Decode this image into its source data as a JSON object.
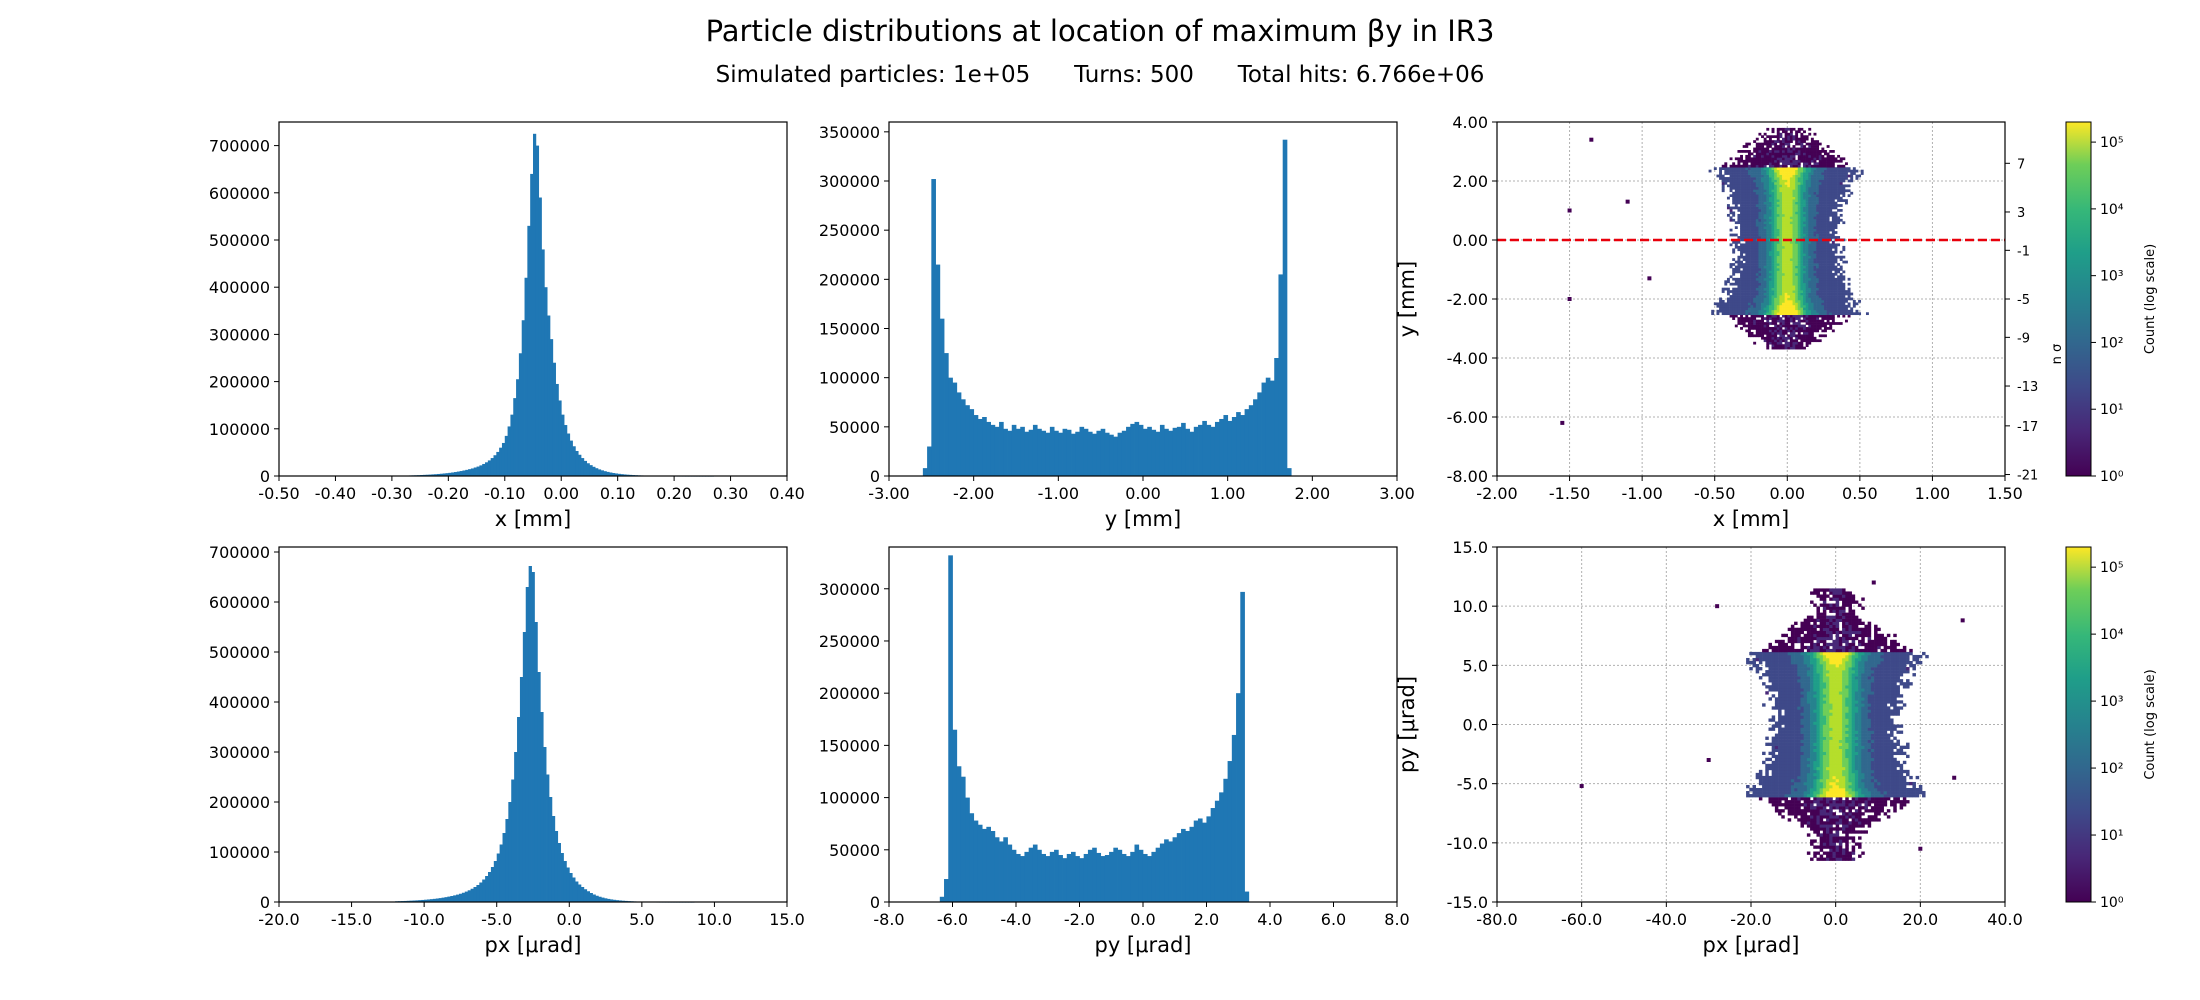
{
  "figure": {
    "title": "Particle distributions at location of maximum βy in IR3",
    "subtitle_particles": "Simulated particles: 1e+05",
    "subtitle_turns": "Turns: 500",
    "subtitle_hits": "Total hits: 6.766e+06"
  },
  "chart_data": [
    {
      "type": "bar",
      "id": "hist-x",
      "xlabel": "x [mm]",
      "ylabel": "",
      "xlim": [
        -0.5,
        0.4
      ],
      "ylim": [
        0,
        750000
      ],
      "xticks": [
        -0.5,
        -0.4,
        -0.3,
        -0.2,
        -0.1,
        0.0,
        0.1,
        0.2,
        0.3,
        0.4
      ],
      "xtick_labels": [
        "-0.50",
        "-0.40",
        "-0.30",
        "-0.20",
        "-0.10",
        "0.00",
        "0.10",
        "0.20",
        "0.30",
        "0.40"
      ],
      "yticks": [
        0,
        100000,
        200000,
        300000,
        400000,
        500000,
        600000,
        700000
      ],
      "ytick_labels": [
        "0",
        "100000",
        "200000",
        "300000",
        "400000",
        "500000",
        "600000",
        "700000"
      ],
      "bin_start": -0.3,
      "bin_width": 0.005,
      "values": [
        500,
        600,
        700,
        800,
        900,
        1000,
        1200,
        1400,
        1600,
        1800,
        2100,
        2400,
        2700,
        3000,
        3400,
        3800,
        4300,
        4800,
        5400,
        6000,
        6700,
        7500,
        8400,
        9400,
        10500,
        11700,
        13000,
        14500,
        16000,
        18000,
        20000,
        22500,
        25500,
        29000,
        33000,
        38000,
        44000,
        51000,
        60000,
        70000,
        85000,
        105000,
        130000,
        165000,
        205000,
        260000,
        330000,
        420000,
        530000,
        640000,
        725000,
        700000,
        590000,
        480000,
        400000,
        340000,
        290000,
        240000,
        195000,
        160000,
        130000,
        108000,
        90000,
        75000,
        63000,
        53000,
        45000,
        38000,
        32000,
        27000,
        23000,
        19500,
        16500,
        14000,
        12000,
        10200,
        8700,
        7400,
        6300,
        5400,
        4600,
        3900,
        3300,
        2800,
        2400,
        2000,
        1700,
        1400,
        1200,
        1000,
        850,
        700,
        600,
        500,
        420,
        350,
        300,
        250,
        210,
        180,
        150,
        120,
        100,
        80,
        60,
        50,
        40,
        30,
        20,
        10,
        5,
        3,
        2,
        1,
        0,
        0,
        0,
        0,
        0,
        0,
        0
      ]
    },
    {
      "type": "bar",
      "id": "hist-y",
      "xlabel": "y [mm]",
      "ylabel": "",
      "xlim": [
        -3.0,
        3.0
      ],
      "ylim": [
        0,
        360000
      ],
      "xticks": [
        -3.0,
        -2.0,
        -1.0,
        0.0,
        1.0,
        2.0,
        3.0
      ],
      "xtick_labels": [
        "-3.00",
        "-2.00",
        "-1.00",
        "0.00",
        "1.00",
        "2.00",
        "3.00"
      ],
      "yticks": [
        0,
        50000,
        100000,
        150000,
        200000,
        250000,
        300000,
        350000
      ],
      "ytick_labels": [
        "0",
        "50000",
        "100000",
        "150000",
        "200000",
        "250000",
        "300000",
        "350000"
      ],
      "bin_start": -2.6,
      "bin_width": 0.05,
      "values": [
        8000,
        30000,
        302000,
        215000,
        160000,
        125000,
        100000,
        95000,
        85000,
        78000,
        72000,
        68000,
        62000,
        58000,
        60000,
        55000,
        52000,
        50000,
        55000,
        48000,
        46000,
        52000,
        48000,
        50000,
        45000,
        47000,
        52000,
        48000,
        46000,
        44000,
        50000,
        46000,
        44000,
        48000,
        47000,
        43000,
        45000,
        50000,
        48000,
        45000,
        43000,
        46000,
        48000,
        44000,
        42000,
        40000,
        44000,
        46000,
        50000,
        53000,
        55000,
        52000,
        48000,
        50000,
        47000,
        45000,
        52000,
        48000,
        46000,
        49000,
        50000,
        54000,
        48000,
        45000,
        50000,
        52000,
        56000,
        52000,
        50000,
        55000,
        58000,
        62000,
        56000,
        60000,
        65000,
        62000,
        68000,
        72000,
        78000,
        85000,
        95000,
        100000,
        97000,
        120000,
        205000,
        342000,
        8000
      ]
    },
    {
      "type": "heatmap",
      "id": "heatmap-xy",
      "xlabel": "x [mm]",
      "ylabel": "y [mm]",
      "y2label": "n σ",
      "xlim": [
        -2.0,
        1.5
      ],
      "ylim": [
        -8.0,
        4.0
      ],
      "xticks": [
        -2.0,
        -1.5,
        -1.0,
        -0.5,
        0.0,
        0.5,
        1.0,
        1.5
      ],
      "xtick_labels": [
        "-2.00",
        "-1.50",
        "-1.00",
        "-0.50",
        "0.00",
        "0.50",
        "1.00",
        "1.50"
      ],
      "yticks": [
        -8.0,
        -6.0,
        -4.0,
        -2.0,
        0.0,
        2.0,
        4.0
      ],
      "ytick_labels": [
        "-8.00",
        "-6.00",
        "-4.00",
        "-2.00",
        "0.00",
        "2.00",
        "4.00"
      ],
      "y2ticks": [
        2.6,
        0.95,
        -0.35,
        -2.0,
        -3.3,
        -4.95,
        -6.3,
        -7.95
      ],
      "y2tick_labels": [
        "7",
        "3",
        "-1",
        "-5",
        "-9",
        "-13",
        "-17",
        "-21"
      ],
      "hline": 0.0,
      "grid": true,
      "core": {
        "x_center": 0.0,
        "x_halfwidth": 0.55,
        "y_low": -3.7,
        "y_high": 3.8,
        "y_core_low": -2.5,
        "y_core_high": 2.5
      },
      "outliers": [
        [
          -1.55,
          -6.2
        ],
        [
          -1.35,
          3.4
        ],
        [
          -1.1,
          1.3
        ],
        [
          -0.95,
          -1.3
        ],
        [
          -1.5,
          1.0
        ],
        [
          -1.5,
          -2.0
        ]
      ],
      "colorbar": {
        "label": "Count (log scale)",
        "scale": "log",
        "min": 1,
        "max": 200000,
        "tick_labels": [
          "10⁰",
          "10¹",
          "10²",
          "10³",
          "10⁴",
          "10⁵"
        ]
      }
    },
    {
      "type": "bar",
      "id": "hist-px",
      "xlabel": "px [μrad]",
      "ylabel": "",
      "xlim": [
        -20.0,
        15.0
      ],
      "ylim": [
        0,
        710000
      ],
      "xticks": [
        -20,
        -15,
        -10,
        -5,
        0,
        5,
        10,
        15
      ],
      "xtick_labels": [
        "-20.0",
        "-15.0",
        "-10.0",
        "-5.0",
        "0.0",
        "5.0",
        "10.0",
        "15.0"
      ],
      "yticks": [
        0,
        100000,
        200000,
        300000,
        400000,
        500000,
        600000,
        700000
      ],
      "ytick_labels": [
        "0",
        "100000",
        "200000",
        "300000",
        "400000",
        "500000",
        "600000",
        "700000"
      ],
      "bin_start": -12.0,
      "bin_width": 0.2,
      "values": [
        1500,
        1700,
        1900,
        2100,
        2400,
        2700,
        3000,
        3300,
        3700,
        4100,
        4600,
        5100,
        5700,
        6300,
        7000,
        7800,
        8700,
        9700,
        10800,
        12000,
        13300,
        14800,
        16500,
        18500,
        20800,
        23400,
        26500,
        30000,
        34000,
        39000,
        45000,
        52000,
        60000,
        70000,
        82000,
        97000,
        115000,
        138000,
        166000,
        200000,
        245000,
        300000,
        370000,
        450000,
        540000,
        630000,
        672000,
        660000,
        560000,
        460000,
        380000,
        310000,
        255000,
        210000,
        172000,
        142000,
        118000,
        98000,
        82000,
        69000,
        58000,
        49000,
        41000,
        35000,
        30000,
        25500,
        21500,
        18000,
        15000,
        12500,
        10500,
        8800,
        7400,
        6200,
        5200,
        4400,
        3700,
        3100,
        2600,
        2200,
        1800,
        1500,
        1200,
        1000,
        800,
        650,
        500,
        400,
        300,
        200,
        150,
        100,
        80,
        60,
        40,
        30,
        20,
        10,
        5,
        3,
        2,
        1,
        1,
        0,
        0,
        0,
        0,
        0,
        0,
        0,
        0,
        0,
        0,
        0,
        0,
        0,
        0,
        0,
        0,
        0
      ]
    },
    {
      "type": "bar",
      "id": "hist-py",
      "xlabel": "py [μrad]",
      "ylabel": "",
      "xlim": [
        -8.0,
        8.0
      ],
      "ylim": [
        0,
        340000
      ],
      "xticks": [
        -8,
        -6,
        -4,
        -2,
        0,
        2,
        4,
        6,
        8
      ],
      "xtick_labels": [
        "-8.0",
        "-6.0",
        "-4.0",
        "-2.0",
        "0.0",
        "2.0",
        "4.0",
        "6.0",
        "8.0"
      ],
      "yticks": [
        0,
        50000,
        100000,
        150000,
        200000,
        250000,
        300000
      ],
      "ytick_labels": [
        "0",
        "50000",
        "100000",
        "150000",
        "200000",
        "250000",
        "300000"
      ],
      "bin_start": -6.4,
      "bin_width": 0.1333,
      "values": [
        5000,
        22000,
        332000,
        165000,
        130000,
        120000,
        100000,
        85000,
        78000,
        74000,
        70000,
        72000,
        68000,
        62000,
        58000,
        62000,
        55000,
        50000,
        46000,
        44000,
        48000,
        52000,
        55000,
        50000,
        46000,
        44000,
        48000,
        50000,
        45000,
        42000,
        46000,
        48000,
        44000,
        42000,
        46000,
        50000,
        52000,
        47000,
        44000,
        45000,
        48000,
        52000,
        50000,
        46000,
        44000,
        48000,
        55000,
        50000,
        46000,
        44000,
        48000,
        52000,
        56000,
        60000,
        58000,
        62000,
        66000,
        70000,
        68000,
        72000,
        78000,
        80000,
        76000,
        82000,
        90000,
        97000,
        105000,
        118000,
        135000,
        160000,
        200000,
        297000,
        10000
      ]
    },
    {
      "type": "heatmap",
      "id": "heatmap-pxpy",
      "xlabel": "px [μrad]",
      "ylabel": "py [μrad]",
      "xlim": [
        -80.0,
        40.0
      ],
      "ylim": [
        -15.0,
        15.0
      ],
      "xticks": [
        -80,
        -60,
        -40,
        -20,
        0,
        20,
        40
      ],
      "xtick_labels": [
        "-80.0",
        "-60.0",
        "-40.0",
        "-20.0",
        "0.0",
        "20.0",
        "40.0"
      ],
      "yticks": [
        -15,
        -10,
        -5,
        0,
        5,
        10,
        15
      ],
      "ytick_labels": [
        "-15.0",
        "-10.0",
        "-5.0",
        "0.0",
        "5.0",
        "10.0",
        "15.0"
      ],
      "grid": true,
      "core": {
        "x_center": 0.0,
        "x_halfwidth": 23.0,
        "y_low": -11.5,
        "y_high": 11.5,
        "y_core_low": -6.2,
        "y_core_high": 6.2
      },
      "outliers": [
        [
          -60.0,
          -5.2
        ],
        [
          -28.0,
          10.0
        ],
        [
          30.0,
          8.8
        ],
        [
          28.0,
          -4.5
        ],
        [
          -30.0,
          -3.0
        ],
        [
          20.0,
          -10.5
        ],
        [
          9.0,
          12.0
        ]
      ],
      "colorbar": {
        "label": "Count (log scale)",
        "scale": "log",
        "min": 1,
        "max": 200000,
        "tick_labels": [
          "10⁰",
          "10¹",
          "10²",
          "10³",
          "10⁴",
          "10⁵"
        ]
      }
    }
  ]
}
